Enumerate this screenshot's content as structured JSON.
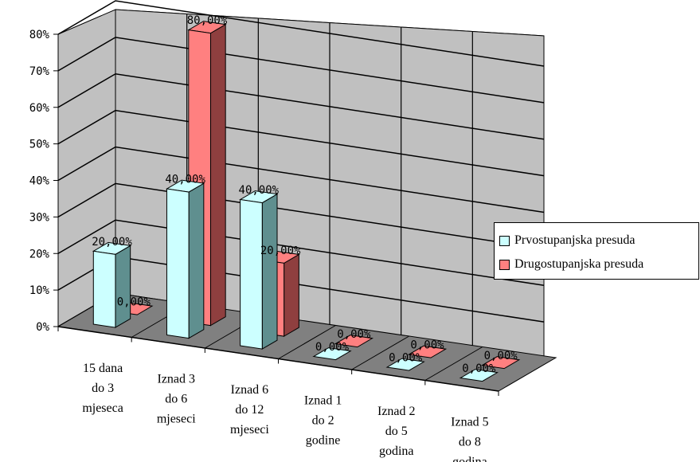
{
  "chart_data": {
    "type": "bar",
    "title": "",
    "categories": [
      [
        "15 dana",
        "do 3",
        "mjeseca"
      ],
      [
        "Iznad 3",
        "do 6",
        "mjeseci"
      ],
      [
        "Iznad 6",
        "do 12",
        "mjeseci"
      ],
      [
        "Iznad 1",
        "do 2",
        "godine"
      ],
      [
        "Iznad 2",
        "do 5",
        "godina"
      ],
      [
        "Iznad 5",
        "do 8",
        "godina"
      ]
    ],
    "series": [
      {
        "name": "Prvostupanjska presuda",
        "values": [
          20,
          40,
          40,
          0,
          0,
          0
        ],
        "labels": [
          "20,00%",
          "40,00%",
          "40,00%",
          "0,00%",
          "0,00%",
          "0,00%"
        ],
        "color": "#ccffff"
      },
      {
        "name": "Drugostupanjska presuda",
        "values": [
          0,
          80,
          20,
          0,
          0,
          0
        ],
        "labels": [
          "0,00%",
          "80,00%",
          "20,00%",
          "0,00%",
          "0,00%",
          "0,00%"
        ],
        "color": "#ff8080"
      }
    ],
    "ylim": [
      0,
      80
    ],
    "yticks": [
      "0%",
      "10%",
      "20%",
      "30%",
      "40%",
      "50%",
      "60%",
      "70%",
      "80%"
    ],
    "grid": true,
    "legend_position": "right",
    "colors": {
      "wall": "#c0c0c0",
      "floor": "#808080",
      "bar_side_1": "#5f8f8f",
      "bar_side_2": "#8f3f3f"
    }
  }
}
